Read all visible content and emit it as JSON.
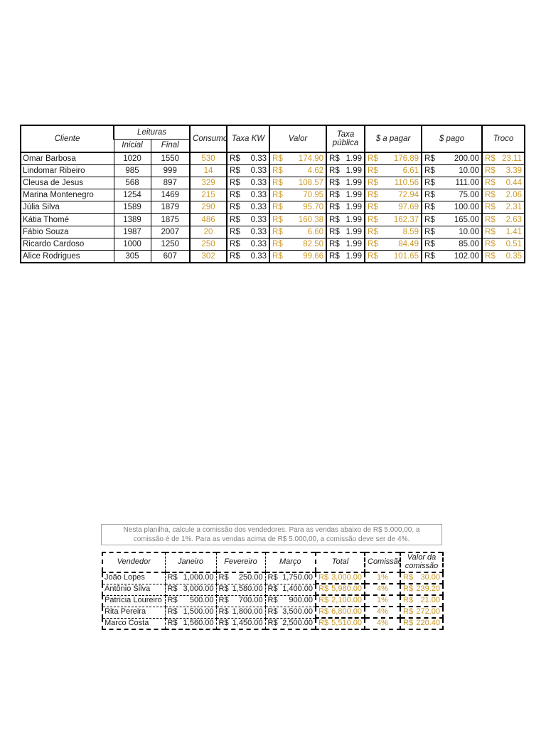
{
  "colors": {
    "gold": "#CD9A28",
    "text": "#1a1a1a",
    "table_border": "#000000",
    "note_text": "#7f7f7f",
    "note_border": "#a3a3a3"
  },
  "billing_table": {
    "currency": "R$",
    "headers": {
      "cliente": "Cliente",
      "leituras": "Leituras",
      "inicial": "Inicial",
      "final": "Final",
      "consumo": "Consumo",
      "taxa_kw": "Taxa KW",
      "valor": "Valor",
      "taxa_publica": "Taxa pública",
      "a_pagar": "$ a pagar",
      "pago": "$ pago",
      "troco": "Troco"
    },
    "rows": [
      {
        "cliente": "Omar Barbosa",
        "inicial": "1020",
        "final": "1550",
        "consumo": "530",
        "taxa_kw": "0.33",
        "valor": "174.90",
        "taxa_publica": "1.99",
        "a_pagar": "176.89",
        "pago": "200.00",
        "troco": "23.11"
      },
      {
        "cliente": "Lindomar Ribeiro",
        "inicial": "985",
        "final": "999",
        "consumo": "14",
        "taxa_kw": "0.33",
        "valor": "4.62",
        "taxa_publica": "1.99",
        "a_pagar": "6.61",
        "pago": "10.00",
        "troco": "3.39"
      },
      {
        "cliente": "Cleusa de Jesus",
        "inicial": "568",
        "final": "897",
        "consumo": "329",
        "taxa_kw": "0.33",
        "valor": "108.57",
        "taxa_publica": "1.99",
        "a_pagar": "110.56",
        "pago": "111.00",
        "troco": "0.44"
      },
      {
        "cliente": "Marina Montenegro",
        "inicial": "1254",
        "final": "1469",
        "consumo": "215",
        "taxa_kw": "0.33",
        "valor": "70.95",
        "taxa_publica": "1.99",
        "a_pagar": "72.94",
        "pago": "75.00",
        "troco": "2.06"
      },
      {
        "cliente": "Júlia Silva",
        "inicial": "1589",
        "final": "1879",
        "consumo": "290",
        "taxa_kw": "0.33",
        "valor": "95.70",
        "taxa_publica": "1.99",
        "a_pagar": "97.69",
        "pago": "100.00",
        "troco": "2.31"
      },
      {
        "cliente": "Kátia Thomé",
        "inicial": "1389",
        "final": "1875",
        "consumo": "486",
        "taxa_kw": "0.33",
        "valor": "160.38",
        "taxa_publica": "1.99",
        "a_pagar": "162.37",
        "pago": "165.00",
        "troco": "2.63"
      },
      {
        "cliente": "Fábio Souza",
        "inicial": "1987",
        "final": "2007",
        "consumo": "20",
        "taxa_kw": "0.33",
        "valor": "6.60",
        "taxa_publica": "1.99",
        "a_pagar": "8.59",
        "pago": "10.00",
        "troco": "1.41"
      },
      {
        "cliente": "Ricardo Cardoso",
        "inicial": "1000",
        "final": "1250",
        "consumo": "250",
        "taxa_kw": "0.33",
        "valor": "82.50",
        "taxa_publica": "1.99",
        "a_pagar": "84.49",
        "pago": "85.00",
        "troco": "0.51"
      },
      {
        "cliente": "Alice Rodrigues",
        "inicial": "305",
        "final": "607",
        "consumo": "302",
        "taxa_kw": "0.33",
        "valor": "99.66",
        "taxa_publica": "1.99",
        "a_pagar": "101.65",
        "pago": "102.00",
        "troco": "0.35"
      }
    ]
  },
  "note": {
    "text": "Nesta planilha, calcule a comissão dos vendedores. Para as vendas abaixo de R$ 5.000,00, a comissão é de 1%. Para as vendas acima de R$ 5.000,00, a comissão deve ser de 4%."
  },
  "commission_table": {
    "currency": "R$",
    "headers": {
      "vendedor": "Vendedor",
      "janeiro": "Janeiro",
      "fevereiro": "Fevereiro",
      "marco": "Março",
      "total": "Total",
      "comissao": "Comissão",
      "valor_comissao": "Valor da comissão"
    },
    "rows": [
      {
        "vendedor": "João Lopes",
        "janeiro": "1,000.00",
        "fevereiro": "250.00",
        "marco": "1,750.00",
        "total": "3,000.00",
        "comissao": "1%",
        "valor_comissao": "30.00"
      },
      {
        "vendedor": "Antônio Silva",
        "janeiro": "3,000.00",
        "fevereiro": "1,580.00",
        "marco": "1,400.00",
        "total": "5,980.00",
        "comissao": "4%",
        "valor_comissao": "239.20"
      },
      {
        "vendedor": "Patrícia Loureiro",
        "janeiro": "500.00",
        "fevereiro": "700.00",
        "marco": "900.00",
        "total": "2,100.00",
        "comissao": "1%",
        "valor_comissao": "21.00"
      },
      {
        "vendedor": "Rita Pereira",
        "janeiro": "1,500.00",
        "fevereiro": "1,800.00",
        "marco": "3,500.00",
        "total": "6,800.00",
        "comissao": "4%",
        "valor_comissao": "272.00"
      },
      {
        "vendedor": "Marco Costa",
        "janeiro": "1,560.00",
        "fevereiro": "1,450.00",
        "marco": "2,500.00",
        "total": "5,510.00",
        "comissao": "4%",
        "valor_comissao": "220.40"
      }
    ]
  }
}
